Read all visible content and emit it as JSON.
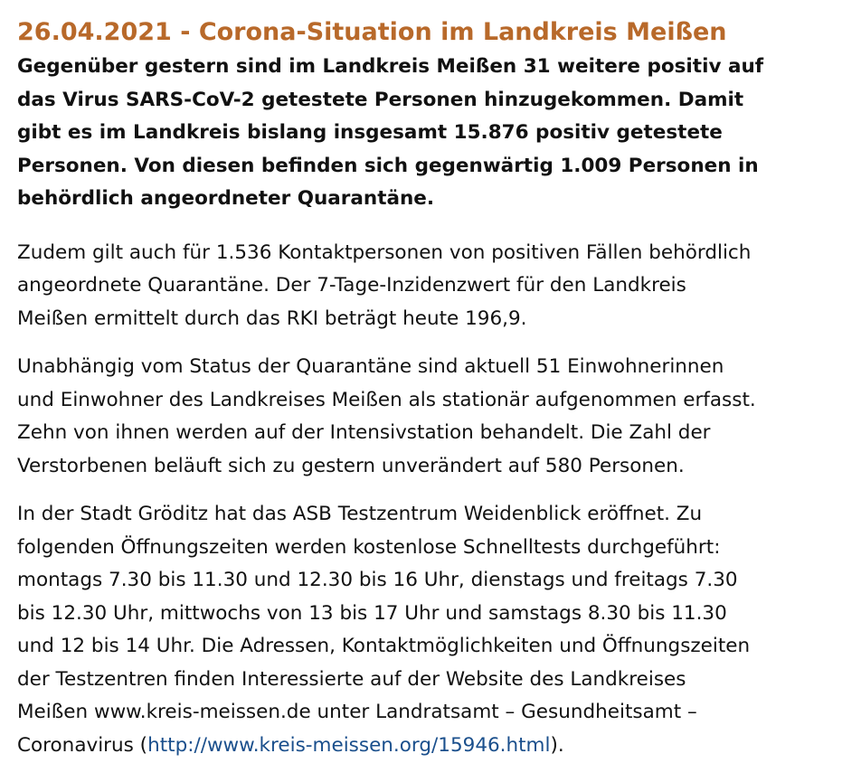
{
  "article": {
    "headline": "26.04.2021 - Corona-Situation im Landkreis Meißen",
    "lead_lines": [
      "Gegenüber gestern sind im Landkreis Meißen 31 weitere positiv auf",
      "das Virus SARS-CoV-2 getestete Personen hinzugekommen. Damit",
      "gibt es im Landkreis bislang insgesamt 15.876 positiv getestete",
      "Personen. Von diesen befinden sich gegenwärtig 1.009 Personen in",
      "behördlich angeordneter Quarantäne."
    ],
    "para1_lines": [
      "Zudem gilt auch für 1.536 Kontaktpersonen von positiven Fällen behördlich",
      "angeordnete Quarantäne. Der 7-Tage-Inzidenzwert für den Landkreis",
      "Meißen ermittelt durch das RKI beträgt heute 196,9."
    ],
    "para2_lines": [
      "Unabhängig vom Status der Quarantäne sind aktuell 51 Einwohnerinnen",
      "und Einwohner des Landkreises Meißen als stationär aufgenommen erfasst.",
      "Zehn von ihnen werden auf der Intensivstation behandelt. Die Zahl der",
      "Verstorbenen beläuft sich zu gestern unverändert auf 580 Personen."
    ],
    "para3_lines": [
      "In der Stadt Gröditz hat das ASB Testzentrum Weidenblick eröffnet. Zu",
      "folgenden Öffnungszeiten werden kostenlose Schnelltests durchgeführt:",
      "montags 7.30 bis 11.30 und 12.30 bis 16 Uhr, dienstags und freitags 7.30",
      "bis 12.30 Uhr, mittwochs von 13 bis 17 Uhr und samstags 8.30 bis 11.30",
      "und 12 bis 14 Uhr. Die Adressen, Kontaktmöglichkeiten und Öffnungszeiten",
      "der Testzentren finden Interessierte auf der Website des Landkreises",
      "Meißen www.kreis-meissen.de unter Landratsamt – Gesundheitsamt –"
    ],
    "para3_last_prefix": "Coronavirus (",
    "link_text": "http://www.kreis-meissen.org/15946.html",
    "para3_last_suffix": ")."
  },
  "colors": {
    "headline": "#b8692a",
    "text": "#111111",
    "link": "#1a4f8c",
    "background": "#ffffff"
  }
}
